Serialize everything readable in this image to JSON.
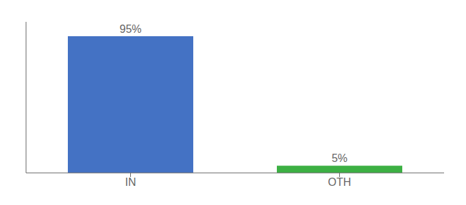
{
  "chart_data": {
    "type": "bar",
    "categories": [
      "IN",
      "OTH"
    ],
    "values": [
      95,
      5
    ],
    "value_labels": [
      "95%",
      "5%"
    ],
    "colors": [
      "#4472c4",
      "#3cb043"
    ],
    "ylim": [
      0,
      105
    ],
    "data_labels": true,
    "tick_labels": "x",
    "grid": false
  }
}
